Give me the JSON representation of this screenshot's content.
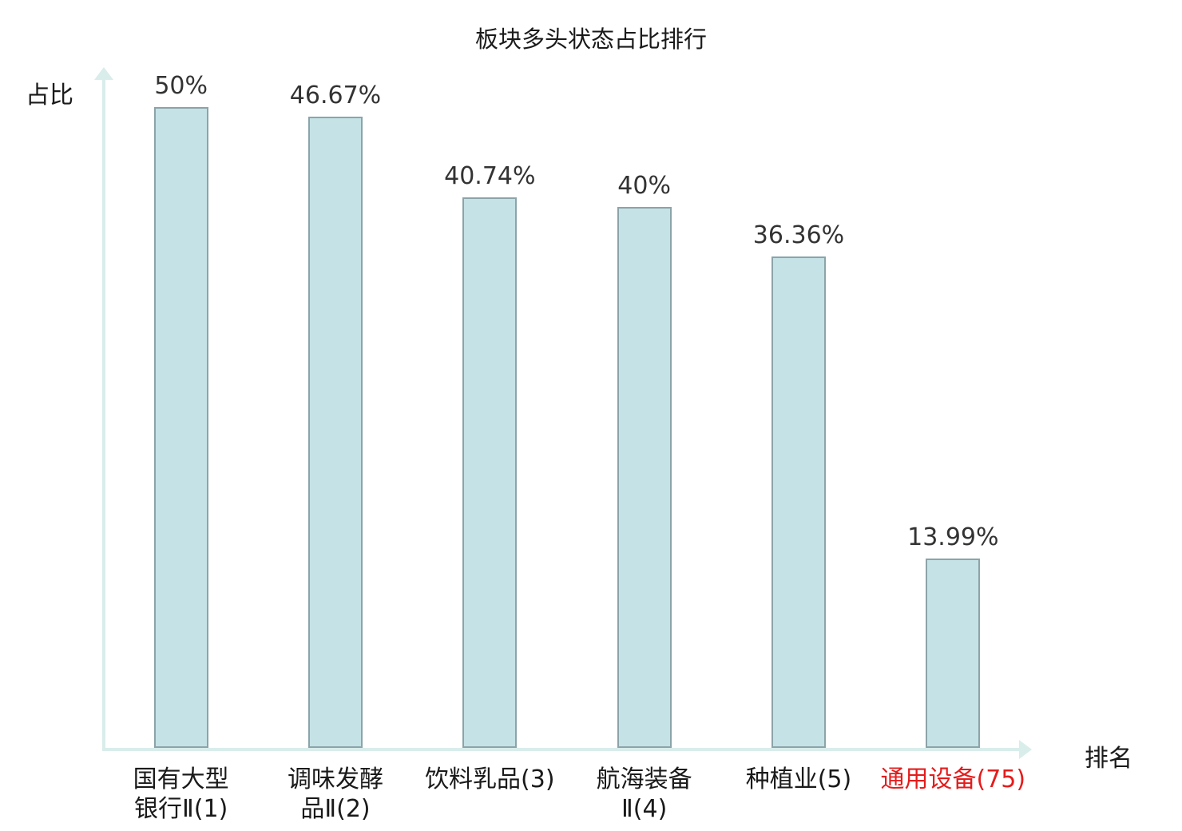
{
  "chart_data": {
    "type": "bar",
    "title": "板块多头状态占比排行",
    "xlabel": "排名",
    "ylabel": "占比",
    "categories": [
      "国有大型\n银行Ⅱ(1)",
      "调味发酵\n品Ⅱ(2)",
      "饮料乳品(3)",
      "航海装备\nⅡ(4)",
      "种植业(5)",
      "通用设备(75)"
    ],
    "values": [
      50,
      46.67,
      40.74,
      40,
      36.36,
      13.99
    ],
    "value_labels": [
      "50%",
      "46.67%",
      "40.74%",
      "40%",
      "36.36%",
      "13.99%"
    ],
    "ylim": [
      0,
      50
    ],
    "grid": false,
    "legend": "none",
    "highlight_index": 5,
    "colors": {
      "bar_fill": "#c5e2e6",
      "bar_border": "#8ba4a9",
      "axis": "#d9edeb",
      "text": "#1a1a1a",
      "value_text": "#333333",
      "highlight_text": "#e51c1c"
    }
  }
}
